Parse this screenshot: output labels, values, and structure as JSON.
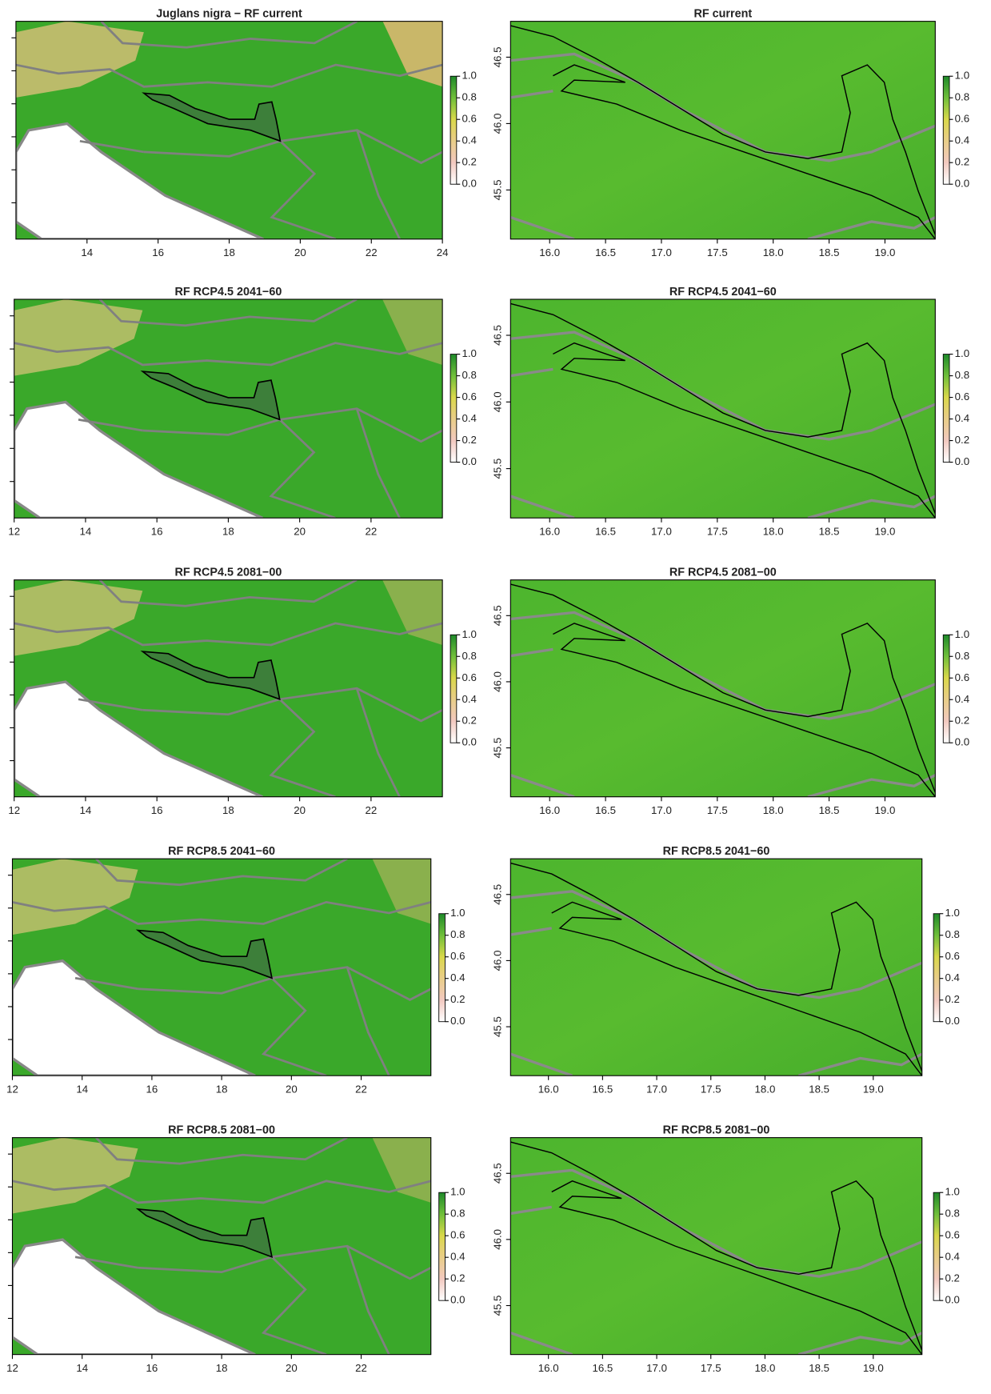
{
  "panels": [
    {
      "title": "Juglans nigra − RF current",
      "x_ticks": [
        "14",
        "16",
        "18",
        "20",
        "22",
        "24"
      ],
      "legend_ticks": [
        "0.0",
        "0.2",
        "0.4",
        "0.6",
        "0.8",
        "1.0"
      ]
    },
    {
      "title": "RF current",
      "x_ticks": [
        "16.0",
        "16.5",
        "17.0",
        "17.5",
        "18.0",
        "18.5",
        "19.0"
      ],
      "y_ticks": [
        "45.5",
        "46.0",
        "46.5"
      ],
      "legend_ticks": [
        "0.0",
        "0.2",
        "0.4",
        "0.6",
        "0.8",
        "1.0"
      ]
    },
    {
      "title": "RF RCP4.5 2041−60",
      "x_ticks": [
        "12",
        "14",
        "16",
        "18",
        "20",
        "22"
      ],
      "legend_ticks": [
        "0.0",
        "0.2",
        "0.4",
        "0.6",
        "0.8",
        "1.0"
      ]
    },
    {
      "title": "RF RCP4.5 2041−60",
      "x_ticks": [
        "16.0",
        "16.5",
        "17.0",
        "17.5",
        "18.0",
        "18.5",
        "19.0"
      ],
      "y_ticks": [
        "45.5",
        "46.0",
        "46.5"
      ],
      "legend_ticks": [
        "0.0",
        "0.2",
        "0.4",
        "0.6",
        "0.8",
        "1.0"
      ]
    },
    {
      "title": "RF RCP4.5 2081−00",
      "x_ticks": [
        "12",
        "14",
        "16",
        "18",
        "20",
        "22"
      ],
      "legend_ticks": [
        "0.0",
        "0.2",
        "0.4",
        "0.6",
        "0.8",
        "1.0"
      ]
    },
    {
      "title": "RF RCP4.5 2081−00",
      "x_ticks": [
        "16.0",
        "16.5",
        "17.0",
        "17.5",
        "18.0",
        "18.5",
        "19.0"
      ],
      "y_ticks": [
        "45.5",
        "46.0",
        "46.5"
      ],
      "legend_ticks": [
        "0.0",
        "0.2",
        "0.4",
        "0.6",
        "0.8",
        "1.0"
      ]
    },
    {
      "title": "RF RCP8.5 2041−60",
      "x_ticks": [
        "12",
        "14",
        "16",
        "18",
        "20",
        "22"
      ],
      "legend_ticks": [
        "0.0",
        "0.2",
        "0.4",
        "0.6",
        "0.8",
        "1.0"
      ]
    },
    {
      "title": "RF RCP8.5 2041−60",
      "x_ticks": [
        "16.0",
        "16.5",
        "17.0",
        "17.5",
        "18.0",
        "18.5",
        "19.0"
      ],
      "y_ticks": [
        "45.5",
        "46.0",
        "46.5"
      ],
      "legend_ticks": [
        "0.0",
        "0.2",
        "0.4",
        "0.6",
        "0.8",
        "1.0"
      ]
    },
    {
      "title": "RF RCP8.5 2081−00",
      "x_ticks": [
        "12",
        "14",
        "16",
        "18",
        "20",
        "22"
      ],
      "legend_ticks": [
        "0.0",
        "0.2",
        "0.4",
        "0.6",
        "0.8",
        "1.0"
      ]
    },
    {
      "title": "RF RCP8.5 2081−00",
      "x_ticks": [
        "16.0",
        "16.5",
        "17.0",
        "17.5",
        "18.0",
        "18.5",
        "19.0"
      ],
      "y_ticks": [
        "45.5",
        "46.0",
        "46.5"
      ],
      "legend_ticks": [
        "0.0",
        "0.2",
        "0.4",
        "0.6",
        "0.8",
        "1.0"
      ]
    }
  ]
}
